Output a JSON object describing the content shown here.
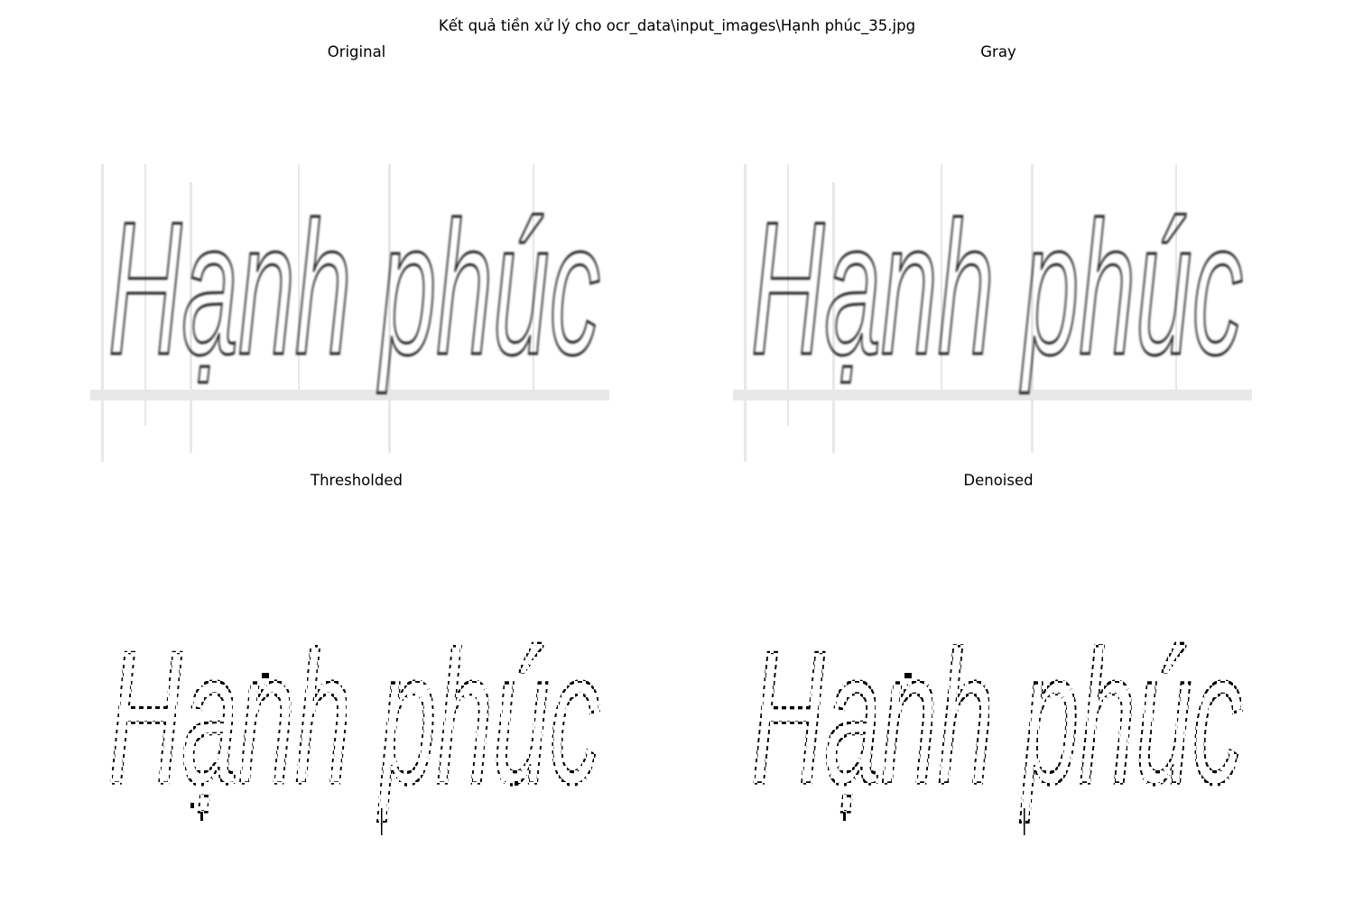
{
  "figure": {
    "suptitle": "Kết quả tiền xử lý cho ocr_data\\input_images\\Hạnh phúc_35.jpg",
    "image_text": "Hạnh phúc",
    "panels": [
      {
        "title": "Original",
        "variant": "soft"
      },
      {
        "title": "Gray",
        "variant": "soft"
      },
      {
        "title": "Thresholded",
        "variant": "binary"
      },
      {
        "title": "Denoised",
        "variant": "binary"
      }
    ]
  }
}
